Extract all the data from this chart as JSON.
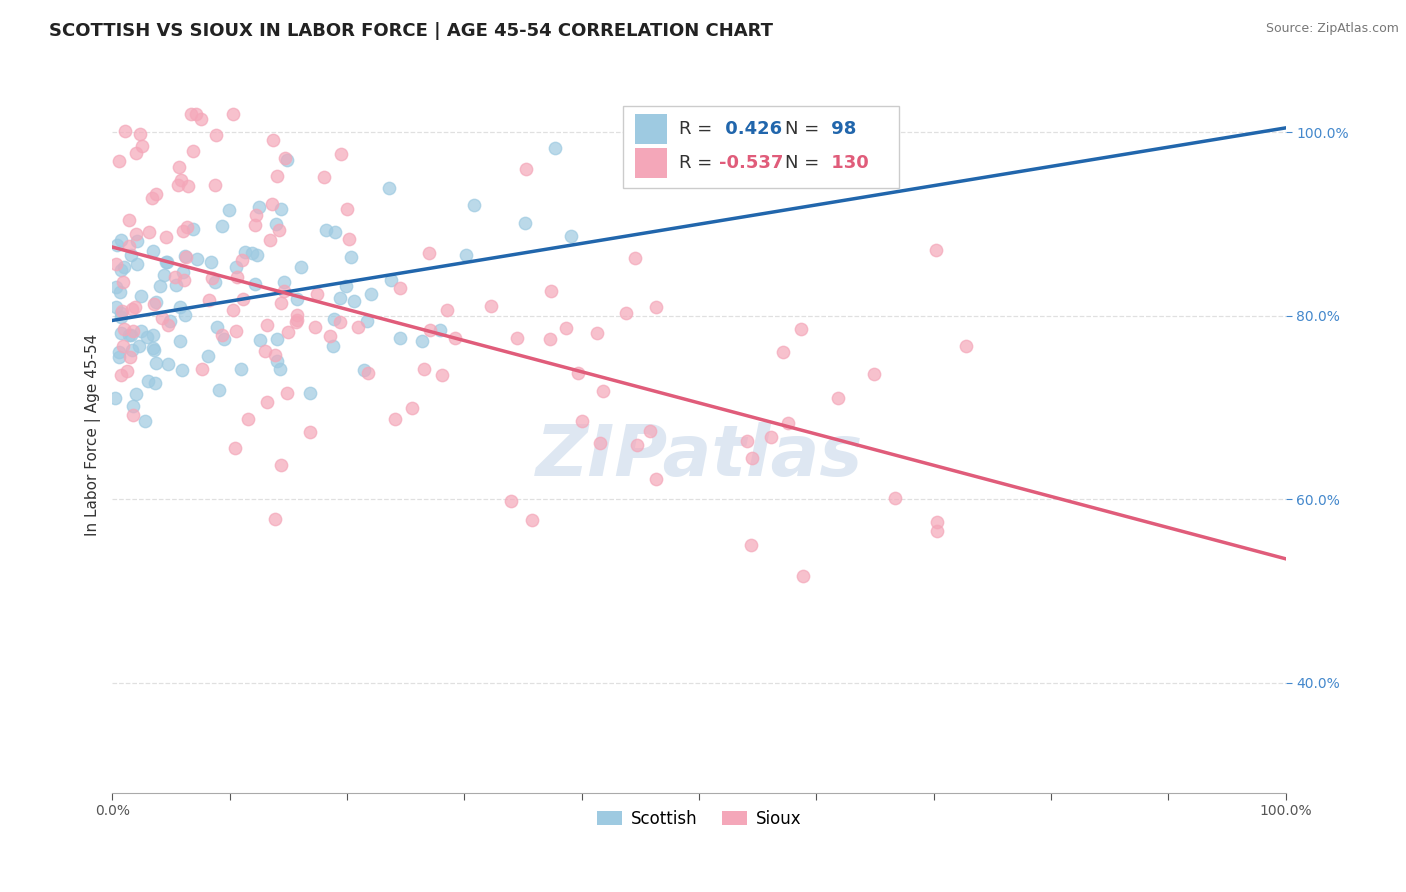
{
  "title": "SCOTTISH VS SIOUX IN LABOR FORCE | AGE 45-54 CORRELATION CHART",
  "source_text": "Source: ZipAtlas.com",
  "ylabel": "In Labor Force | Age 45-54",
  "watermark": "ZIPatlas",
  "xlim": [
    0.0,
    1.0
  ],
  "ylim": [
    0.28,
    1.06
  ],
  "ytick_positions": [
    0.4,
    0.6,
    0.8,
    1.0
  ],
  "yticklabels": [
    "40.0%",
    "60.0%",
    "80.0%",
    "100.0%"
  ],
  "scottish_R": 0.426,
  "scottish_N": 98,
  "sioux_R": -0.537,
  "sioux_N": 130,
  "scottish_color": "#9ecae1",
  "sioux_color": "#f4a7b9",
  "scottish_line_color": "#2166ac",
  "sioux_line_color": "#e05c7a",
  "legend_label_scottish": "Scottish",
  "legend_label_sioux": "Sioux",
  "background_color": "#ffffff",
  "grid_color": "#e0e0e0",
  "title_fontsize": 13,
  "axis_label_fontsize": 11,
  "tick_fontsize": 10,
  "legend_fontsize": 13,
  "watermark_fontsize": 52,
  "watermark_color": "#c8d8ea",
  "watermark_alpha": 0.6,
  "sc_line_x0": 0.0,
  "sc_line_y0": 0.795,
  "sc_line_x1": 1.0,
  "sc_line_y1": 1.005,
  "si_line_x0": 0.0,
  "si_line_y0": 0.875,
  "si_line_x1": 1.0,
  "si_line_y1": 0.535
}
